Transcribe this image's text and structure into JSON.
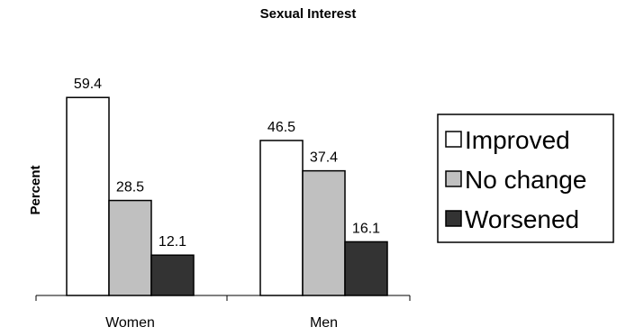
{
  "chart_data": {
    "type": "bar",
    "title": "Sexual Interest",
    "ylabel": "Percent",
    "xlabel": "",
    "categories": [
      "Women",
      "Men"
    ],
    "series": [
      {
        "name": "Improved",
        "values": [
          59.4,
          46.5
        ],
        "color": "#ffffff"
      },
      {
        "name": "No change",
        "values": [
          28.5,
          37.4
        ],
        "color": "#c0c0c0"
      },
      {
        "name": "Worsened",
        "values": [
          12.1,
          16.1
        ],
        "color": "#333333"
      }
    ],
    "data_labels": [
      [
        "59.4",
        "46.5"
      ],
      [
        "28.5",
        "37.4"
      ],
      [
        "12.1",
        "16.1"
      ]
    ],
    "ylim": [
      0,
      70
    ],
    "grid": false,
    "legend_position": "right"
  }
}
